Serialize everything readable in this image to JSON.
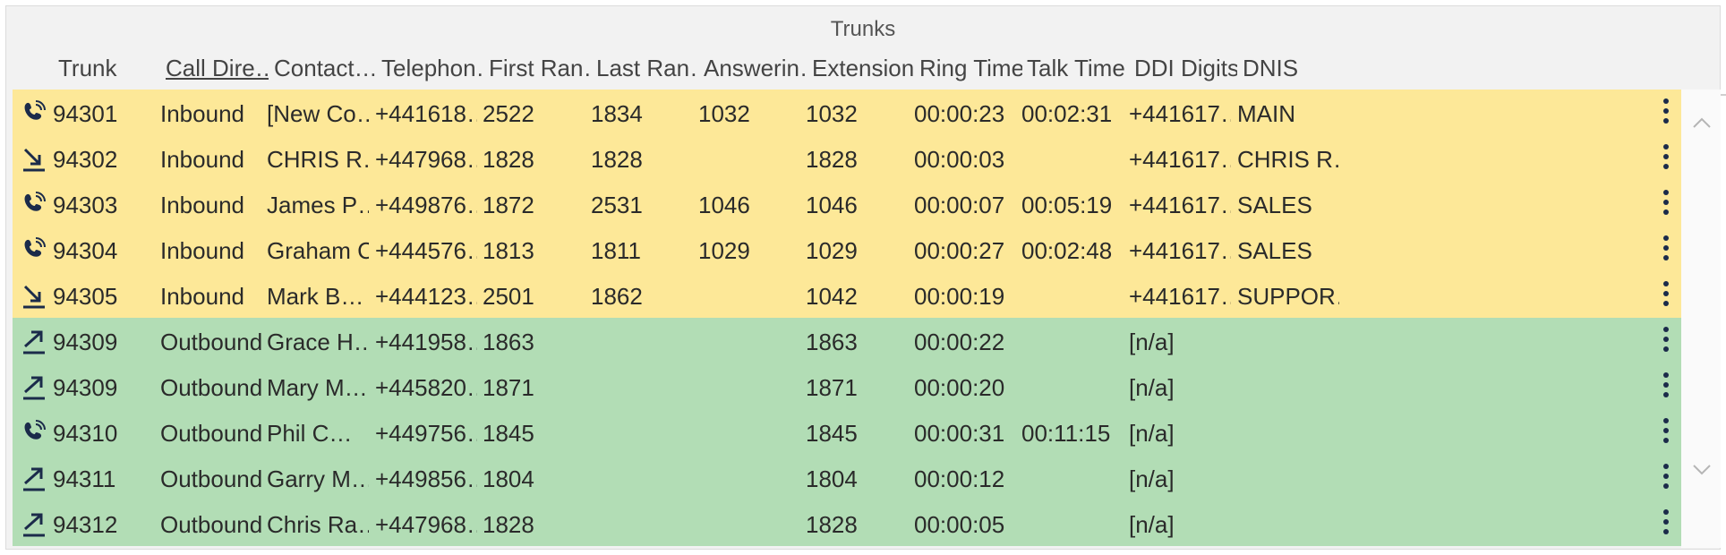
{
  "panel": {
    "title": "Trunks"
  },
  "columns": [
    "Trunk",
    "Call Dire…",
    "Contact…",
    "Telephon…",
    "First Ran…",
    "Last Ran…",
    "Answerin…",
    "Extension",
    "Ring Time",
    "Talk Time",
    "DDI Digits",
    "DNIS"
  ],
  "sorted_column": "Call Dire…",
  "colors": {
    "inbound": "#fde898",
    "outbound": "#b2ddb5",
    "icon": "#1b2b4a"
  },
  "rows": [
    {
      "icon": "phone-ringing-icon",
      "trunk": "94301",
      "direction": "Inbound",
      "contact": "[New Co…",
      "telephone": "+441618…",
      "first": "2522",
      "last": "1834",
      "answering": "1032",
      "extension": "1032",
      "ring": "00:00:23",
      "talk": "00:02:31",
      "ddi": "+441617…",
      "dnis": "MAIN"
    },
    {
      "icon": "incoming-arrow-icon",
      "trunk": "94302",
      "direction": "Inbound",
      "contact": "CHRIS R…",
      "telephone": "+447968…",
      "first": "1828",
      "last": "1828",
      "answering": "",
      "extension": "1828",
      "ring": "00:00:03",
      "talk": "",
      "ddi": "+441617…",
      "dnis": "CHRIS R…"
    },
    {
      "icon": "phone-ringing-icon",
      "trunk": "94303",
      "direction": "Inbound",
      "contact": "James P…",
      "telephone": "+449876…",
      "first": "1872",
      "last": "2531",
      "answering": "1046",
      "extension": "1046",
      "ring": "00:00:07",
      "talk": "00:05:19",
      "ddi": "+441617…",
      "dnis": "SALES"
    },
    {
      "icon": "phone-ringing-icon",
      "trunk": "94304",
      "direction": "Inbound",
      "contact": "Graham C…",
      "telephone": "+444576…",
      "first": "1813",
      "last": "1811",
      "answering": "1029",
      "extension": "1029",
      "ring": "00:00:27",
      "talk": "00:02:48",
      "ddi": "+441617…",
      "dnis": "SALES"
    },
    {
      "icon": "incoming-arrow-icon",
      "trunk": "94305",
      "direction": "Inbound",
      "contact": "Mark B…",
      "telephone": "+444123…",
      "first": "2501",
      "last": "1862",
      "answering": "",
      "extension": "1042",
      "ring": "00:00:19",
      "talk": "",
      "ddi": "+441617…",
      "dnis": "SUPPOR…"
    },
    {
      "icon": "outgoing-arrow-icon",
      "trunk": "94309",
      "direction": "Outbound",
      "contact": "Grace H…",
      "telephone": "+441958…",
      "first": "1863",
      "last": "",
      "answering": "",
      "extension": "1863",
      "ring": "00:00:22",
      "talk": "",
      "ddi": "[n/a]",
      "dnis": ""
    },
    {
      "icon": "outgoing-arrow-icon",
      "trunk": "94309",
      "direction": "Outbound",
      "contact": "Mary M…",
      "telephone": "+445820…",
      "first": "1871",
      "last": "",
      "answering": "",
      "extension": "1871",
      "ring": "00:00:20",
      "talk": "",
      "ddi": "[n/a]",
      "dnis": ""
    },
    {
      "icon": "phone-ringing-icon",
      "trunk": "94310",
      "direction": "Outbound",
      "contact": "Phil C…",
      "telephone": "+449756…",
      "first": "1845",
      "last": "",
      "answering": "",
      "extension": "1845",
      "ring": "00:00:31",
      "talk": "00:11:15",
      "ddi": "[n/a]",
      "dnis": ""
    },
    {
      "icon": "outgoing-arrow-icon",
      "trunk": "94311",
      "direction": "Outbound",
      "contact": "Garry M…",
      "telephone": "+449856…",
      "first": "1804",
      "last": "",
      "answering": "",
      "extension": "1804",
      "ring": "00:00:12",
      "talk": "",
      "ddi": "[n/a]",
      "dnis": ""
    },
    {
      "icon": "outgoing-arrow-icon",
      "trunk": "94312",
      "direction": "Outbound",
      "contact": "Chris Ra…",
      "telephone": "+447968…",
      "first": "1828",
      "last": "",
      "answering": "",
      "extension": "1828",
      "ring": "00:00:05",
      "talk": "",
      "ddi": "[n/a]",
      "dnis": ""
    }
  ]
}
